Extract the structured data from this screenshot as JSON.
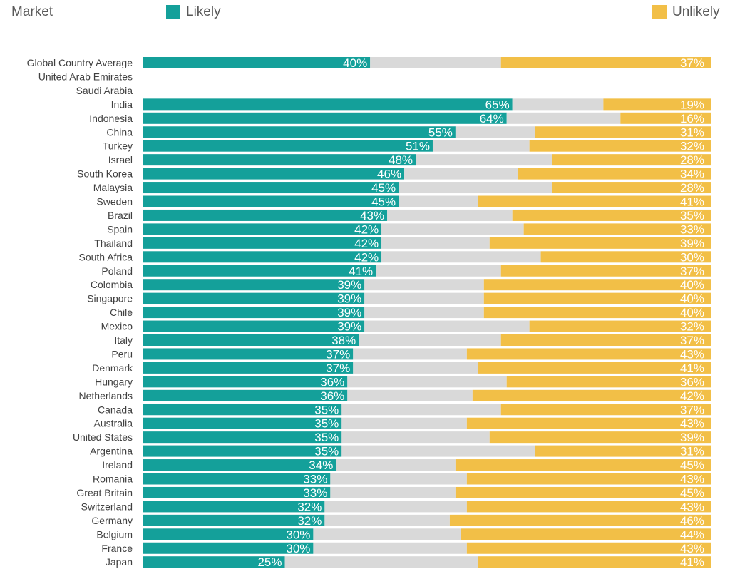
{
  "header": {
    "market_label": "Market"
  },
  "legend": [
    {
      "name": "Likely",
      "color": "#14A09A"
    },
    {
      "name": "Unlikely",
      "color": "#F2BF47"
    }
  ],
  "chart_data": {
    "type": "bar",
    "orientation": "horizontal",
    "stacked": true,
    "percent_stacked": true,
    "categories": [
      "Global Country Average",
      "United Arab Emirates",
      "Saudi Arabia",
      "India",
      "Indonesia",
      "China",
      "Turkey",
      "Israel",
      "South Korea",
      "Malaysia",
      "Sweden",
      "Brazil",
      "Spain",
      "Thailand",
      "South Africa",
      "Poland",
      "Colombia",
      "Singapore",
      "Chile",
      "Mexico",
      "Italy",
      "Peru",
      "Denmark",
      "Hungary",
      "Netherlands",
      "Canada",
      "Australia",
      "United States",
      "Argentina",
      "Ireland",
      "Romania",
      "Great Britain",
      "Switzerland",
      "Germany",
      "Belgium",
      "France",
      "Japan"
    ],
    "series": [
      {
        "name": "Likely",
        "color": "#14A09A",
        "values": [
          40,
          null,
          null,
          65,
          64,
          55,
          51,
          48,
          46,
          45,
          45,
          43,
          42,
          42,
          42,
          41,
          39,
          39,
          39,
          39,
          38,
          37,
          37,
          36,
          36,
          35,
          35,
          35,
          35,
          34,
          33,
          33,
          32,
          32,
          30,
          30,
          25
        ]
      },
      {
        "color": "#D9D9D9",
        "values": [
          23,
          null,
          null,
          16,
          20,
          14,
          17,
          24,
          20,
          27,
          14,
          22,
          25,
          19,
          28,
          22,
          21,
          21,
          21,
          29,
          25,
          20,
          22,
          28,
          22,
          28,
          22,
          26,
          34,
          21,
          24,
          22,
          25,
          22,
          26,
          27,
          34
        ]
      },
      {
        "name": "Unlikely",
        "color": "#F2BF47",
        "values": [
          37,
          null,
          null,
          19,
          16,
          31,
          32,
          28,
          34,
          28,
          41,
          35,
          33,
          39,
          30,
          37,
          40,
          40,
          40,
          32,
          37,
          43,
          41,
          36,
          42,
          37,
          43,
          39,
          31,
          45,
          43,
          45,
          43,
          46,
          44,
          43,
          41
        ]
      }
    ],
    "labeled_series": [
      "Likely",
      "Unlikely"
    ],
    "xlim": [
      0,
      100
    ],
    "legend_position": "top",
    "grid": false
  }
}
